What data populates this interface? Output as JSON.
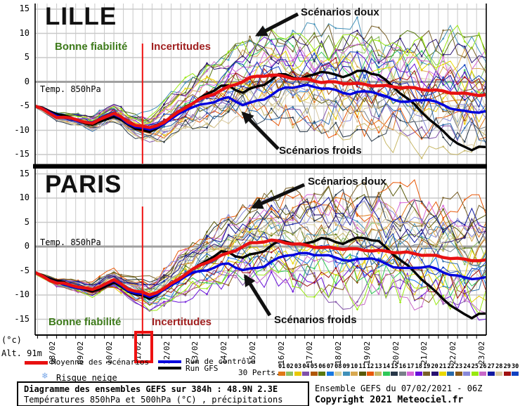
{
  "chart_data": {
    "type": "line",
    "title": "Diagramme des ensembles GEFS sur 384h : 48.9N 2.3E",
    "subtitle": "Températures 850hPa et 500hPa (°C) , précipitations (mm)",
    "run_info": "Ensemble GEFS du 07/02/2021 - 06Z",
    "x_dates": [
      "08/02",
      "09/02",
      "10/02",
      "11/02",
      "12/02",
      "13/02",
      "14/02",
      "15/02",
      "16/02",
      "17/02",
      "18/02",
      "19/02",
      "20/02",
      "21/02",
      "22/02",
      "23/02"
    ],
    "highlight_date": "11/02",
    "y_ticks": [
      15,
      10,
      5,
      0,
      -5,
      -10,
      -15
    ],
    "y_unit": "(°c)",
    "ylim": [
      -17.5,
      16.5
    ],
    "grid": true,
    "zero_line_label": "Temp. 850hPa",
    "panels": [
      {
        "name": "LILLE",
        "annotations": {
          "good": "Bonne fiabilité",
          "uncertain": "Incertitudes",
          "warm": "Scénarios doux",
          "cold": "Scénarios froids"
        },
        "mean": [
          [
            0,
            -5
          ],
          [
            0.75,
            -7.2
          ],
          [
            1.5,
            -7.8
          ],
          [
            2,
            -8.7
          ],
          [
            2.7,
            -6.3
          ],
          [
            3.3,
            -8.5
          ],
          [
            4,
            -9.6
          ],
          [
            4.6,
            -8
          ],
          [
            5.3,
            -5
          ],
          [
            6,
            -3
          ],
          [
            6.8,
            -1
          ],
          [
            7.5,
            0.8
          ],
          [
            8.2,
            1.5
          ],
          [
            9,
            0.8
          ],
          [
            10,
            0
          ],
          [
            11,
            -0.3
          ],
          [
            12,
            -0.8
          ],
          [
            13,
            -1.2
          ],
          [
            14,
            -1.8
          ],
          [
            15,
            -2.5
          ],
          [
            16,
            -2.8
          ]
        ],
        "control": [
          [
            0,
            -5
          ],
          [
            1,
            -7.5
          ],
          [
            2,
            -8.5
          ],
          [
            2.7,
            -6.5
          ],
          [
            3.3,
            -8.8
          ],
          [
            4,
            -10
          ],
          [
            4.7,
            -8
          ],
          [
            5.3,
            -5.5
          ],
          [
            6,
            -4.5
          ],
          [
            6.7,
            -3.2
          ],
          [
            7.3,
            -4.8
          ],
          [
            8,
            -3.5
          ],
          [
            8.7,
            -1.2
          ],
          [
            9.5,
            -0.8
          ],
          [
            10.3,
            -1.5
          ],
          [
            11,
            -2.5
          ],
          [
            11.7,
            -1.8
          ],
          [
            12.4,
            -3.5
          ],
          [
            13,
            -4.2
          ],
          [
            13.7,
            -3.5
          ],
          [
            14.4,
            -5.2
          ],
          [
            15.1,
            -6.3
          ],
          [
            16,
            -6
          ]
        ],
        "gfs": [
          [
            0,
            -5
          ],
          [
            1,
            -7
          ],
          [
            2,
            -9
          ],
          [
            2.7,
            -7
          ],
          [
            3.4,
            -9.3
          ],
          [
            4,
            -10.5
          ],
          [
            5,
            -6.5
          ],
          [
            6,
            -2.5
          ],
          [
            6.6,
            -0.5
          ],
          [
            7.2,
            -2.2
          ],
          [
            8,
            -0.5
          ],
          [
            8.6,
            1.8
          ],
          [
            9.3,
            0.5
          ],
          [
            10,
            2.2
          ],
          [
            10.7,
            1
          ],
          [
            11.4,
            2.4
          ],
          [
            12,
            1.4
          ],
          [
            12.6,
            -1.5
          ],
          [
            13.3,
            -5
          ],
          [
            14,
            -9
          ],
          [
            14.7,
            -12.5
          ],
          [
            15.2,
            -14.3
          ],
          [
            15.5,
            -13.2
          ],
          [
            16,
            -13.8
          ]
        ]
      },
      {
        "name": "PARIS",
        "annotations": {
          "good": "Bonne fiabilité",
          "uncertain": "Incertitudes",
          "warm": "Scénarios doux",
          "cold": "Scénarios froids"
        },
        "mean": [
          [
            0,
            -5.5
          ],
          [
            0.75,
            -7.5
          ],
          [
            1.5,
            -8.2
          ],
          [
            2,
            -9
          ],
          [
            2.7,
            -6.8
          ],
          [
            3.3,
            -8.8
          ],
          [
            4,
            -10
          ],
          [
            4.6,
            -8.4
          ],
          [
            5.3,
            -5.4
          ],
          [
            6,
            -3.2
          ],
          [
            6.8,
            -1.2
          ],
          [
            7.5,
            0.6
          ],
          [
            8.2,
            1.3
          ],
          [
            9,
            0.6
          ],
          [
            10,
            -0.2
          ],
          [
            11,
            -0.5
          ],
          [
            12,
            -0.9
          ],
          [
            13,
            -1.3
          ],
          [
            14,
            -2
          ],
          [
            15,
            -2.7
          ],
          [
            16,
            -3
          ]
        ],
        "control": [
          [
            0,
            -5.5
          ],
          [
            1,
            -8
          ],
          [
            2,
            -9
          ],
          [
            2.7,
            -7
          ],
          [
            3.3,
            -9.2
          ],
          [
            4,
            -10.4
          ],
          [
            4.7,
            -8.4
          ],
          [
            5.3,
            -5.8
          ],
          [
            6,
            -4.8
          ],
          [
            6.7,
            -3.4
          ],
          [
            7.3,
            -5
          ],
          [
            8,
            -4
          ],
          [
            8.7,
            -1.8
          ],
          [
            9.5,
            -1.4
          ],
          [
            10.3,
            -2
          ],
          [
            11,
            -3
          ],
          [
            11.7,
            -2.2
          ],
          [
            12.4,
            -4
          ],
          [
            13,
            -4.6
          ],
          [
            13.7,
            -4
          ],
          [
            14.4,
            -5.6
          ],
          [
            15.1,
            -6.6
          ],
          [
            16,
            -6.4
          ]
        ],
        "gfs": [
          [
            0,
            -5.5
          ],
          [
            1,
            -7.5
          ],
          [
            2,
            -9.4
          ],
          [
            2.7,
            -7.4
          ],
          [
            3.4,
            -9.6
          ],
          [
            4,
            -10.8
          ],
          [
            5,
            -6.8
          ],
          [
            6,
            -2.8
          ],
          [
            6.6,
            -0.8
          ],
          [
            7.2,
            -2.4
          ],
          [
            8,
            -0.8
          ],
          [
            8.6,
            1.4
          ],
          [
            9.3,
            0.2
          ],
          [
            10,
            1.8
          ],
          [
            10.7,
            0.6
          ],
          [
            11.4,
            2
          ],
          [
            12,
            1
          ],
          [
            12.6,
            -2
          ],
          [
            13.3,
            -5.5
          ],
          [
            14,
            -9.5
          ],
          [
            14.7,
            -13
          ],
          [
            15.2,
            -14.8
          ],
          [
            15.5,
            -13.8
          ],
          [
            16,
            -14.2
          ]
        ]
      }
    ],
    "series_legend": [
      {
        "label": "Moyenne des scénarios",
        "color": "#e81111"
      },
      {
        "label": "Run de contrôle",
        "color": "#0000dd"
      },
      {
        "label": "Run GFS",
        "color": "#000000"
      }
    ],
    "members": {
      "count": 30,
      "colors": [
        "#e07818",
        "#8cc063",
        "#e8c800",
        "#8050a8",
        "#b05808",
        "#587810",
        "#1878e0",
        "#d8d0a0",
        "#4090b8",
        "#d8a850",
        "#585808",
        "#e85808",
        "#c8b868",
        "#30c858",
        "#283848",
        "#788088",
        "#d868d8",
        "#6810d8",
        "#786028",
        "#281070",
        "#e8d800",
        "#2868a8",
        "#885818",
        "#8888d8",
        "#98e810",
        "#c868c8",
        "#1018a0",
        "#d8c8a0",
        "#a01010",
        "#1040c0"
      ],
      "spread_profile": [
        [
          0,
          0.12
        ],
        [
          1,
          0.55
        ],
        [
          2,
          0.85
        ],
        [
          3,
          1.1
        ],
        [
          3.8,
          1.5
        ],
        [
          5,
          2.6
        ],
        [
          6,
          3.4
        ],
        [
          7,
          4.2
        ],
        [
          8,
          5.0
        ],
        [
          10,
          5.8
        ],
        [
          12,
          6.2
        ],
        [
          16,
          6.6
        ]
      ]
    }
  },
  "legend": {
    "perts_label": "30 Perts.",
    "snow_label": "Risque neige",
    "snow_icon_color": "#7aa8e8"
  },
  "footer": {
    "unit": "(°c)",
    "alt": "Alt. 91m",
    "box_line1": "Diagramme des ensembles GEFS sur 384h : 48.9N 2.3E",
    "box_line2": "Températures 850hPa et 500hPa (°C) , précipitations (mm)",
    "run_info": "Ensemble GEFS du 07/02/2021 - 06Z",
    "copyright": "Copyright 2021 Meteociel.fr"
  },
  "colors": {
    "good": "#3d7a1a",
    "uncertain": "#a02020",
    "highlight": "#ee1111",
    "grid": "#c9c9c9",
    "zero_line": "#a0a0a0"
  }
}
